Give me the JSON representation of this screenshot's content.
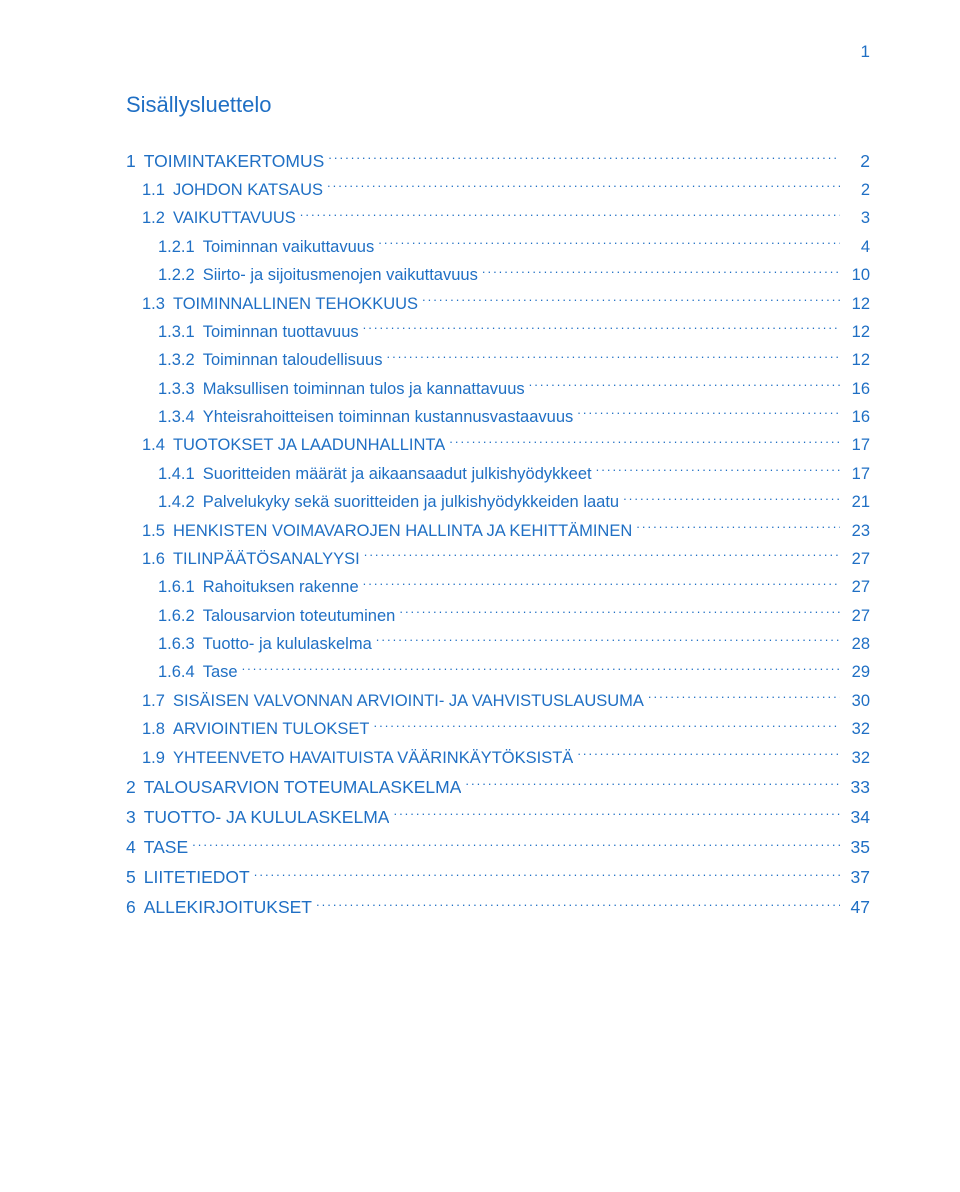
{
  "page_number_top": "1",
  "title": "Sisällysluettelo",
  "colors": {
    "text": "#1f6fc4",
    "background": "#ffffff"
  },
  "typography": {
    "title_fontsize_pt": 16,
    "entry_fontsize_pt": 12,
    "font_family": "Verdana, sans-serif"
  },
  "entries": [
    {
      "level": 1,
      "num": "1",
      "label": "TOIMINTAKERTOMUS",
      "page": "2",
      "major": true
    },
    {
      "level": 2,
      "num": "1.1",
      "label": "JOHDON KATSAUS",
      "page": "2"
    },
    {
      "level": 2,
      "num": "1.2",
      "label": "VAIKUTTAVUUS",
      "page": "3"
    },
    {
      "level": 3,
      "num": "1.2.1",
      "label": "Toiminnan vaikuttavuus",
      "page": "4"
    },
    {
      "level": 3,
      "num": "1.2.2",
      "label": "Siirto- ja sijoitusmenojen vaikuttavuus",
      "page": "10"
    },
    {
      "level": 2,
      "num": "1.3",
      "label": "TOIMINNALLINEN TEHOKKUUS",
      "page": "12"
    },
    {
      "level": 3,
      "num": "1.3.1",
      "label": "Toiminnan tuottavuus",
      "page": "12"
    },
    {
      "level": 3,
      "num": "1.3.2",
      "label": "Toiminnan taloudellisuus",
      "page": "12"
    },
    {
      "level": 3,
      "num": "1.3.3",
      "label": "Maksullisen toiminnan tulos ja kannattavuus",
      "page": "16"
    },
    {
      "level": 3,
      "num": "1.3.4",
      "label": "Yhteisrahoitteisen toiminnan kustannusvastaavuus",
      "page": "16"
    },
    {
      "level": 2,
      "num": "1.4",
      "label": "TUOTOKSET JA LAADUNHALLINTA",
      "page": "17"
    },
    {
      "level": 3,
      "num": "1.4.1",
      "label": "Suoritteiden määrät ja aikaansaadut julkishyödykkeet",
      "page": "17"
    },
    {
      "level": 3,
      "num": "1.4.2",
      "label": "Palvelukyky sekä suoritteiden ja julkishyödykkeiden laatu",
      "page": "21"
    },
    {
      "level": 2,
      "num": "1.5",
      "label": "HENKISTEN VOIMAVAROJEN HALLINTA JA KEHITTÄMINEN",
      "page": "23"
    },
    {
      "level": 2,
      "num": "1.6",
      "label": "TILINPÄÄTÖSANALYYSI",
      "page": "27"
    },
    {
      "level": 3,
      "num": "1.6.1",
      "label": "Rahoituksen rakenne",
      "page": "27"
    },
    {
      "level": 3,
      "num": "1.6.2",
      "label": "Talousarvion toteutuminen",
      "page": "27"
    },
    {
      "level": 3,
      "num": "1.6.3",
      "label": "Tuotto- ja kululaskelma",
      "page": "28"
    },
    {
      "level": 3,
      "num": "1.6.4",
      "label": "Tase",
      "page": "29"
    },
    {
      "level": 2,
      "num": "1.7",
      "label": "SISÄISEN VALVONNAN ARVIOINTI- JA VAHVISTUSLAUSUMA",
      "page": "30"
    },
    {
      "level": 2,
      "num": "1.8",
      "label": "ARVIOINTIEN TULOKSET",
      "page": "32"
    },
    {
      "level": 2,
      "num": "1.9",
      "label": "YHTEENVETO HAVAITUISTA VÄÄRINKÄYTÖKSISTÄ",
      "page": "32"
    },
    {
      "level": 1,
      "num": "2",
      "label": "TALOUSARVION TOTEUMALASKELMA",
      "page": "33",
      "major": true
    },
    {
      "level": 1,
      "num": "3",
      "label": "TUOTTO- JA KULULASKELMA",
      "page": "34",
      "major": true
    },
    {
      "level": 1,
      "num": "4",
      "label": "TASE",
      "page": "35",
      "major": true
    },
    {
      "level": 1,
      "num": "5",
      "label": "LIITETIEDOT",
      "page": "37",
      "major": true
    },
    {
      "level": 1,
      "num": "6",
      "label": "ALLEKIRJOITUKSET",
      "page": "47",
      "major": true
    }
  ]
}
